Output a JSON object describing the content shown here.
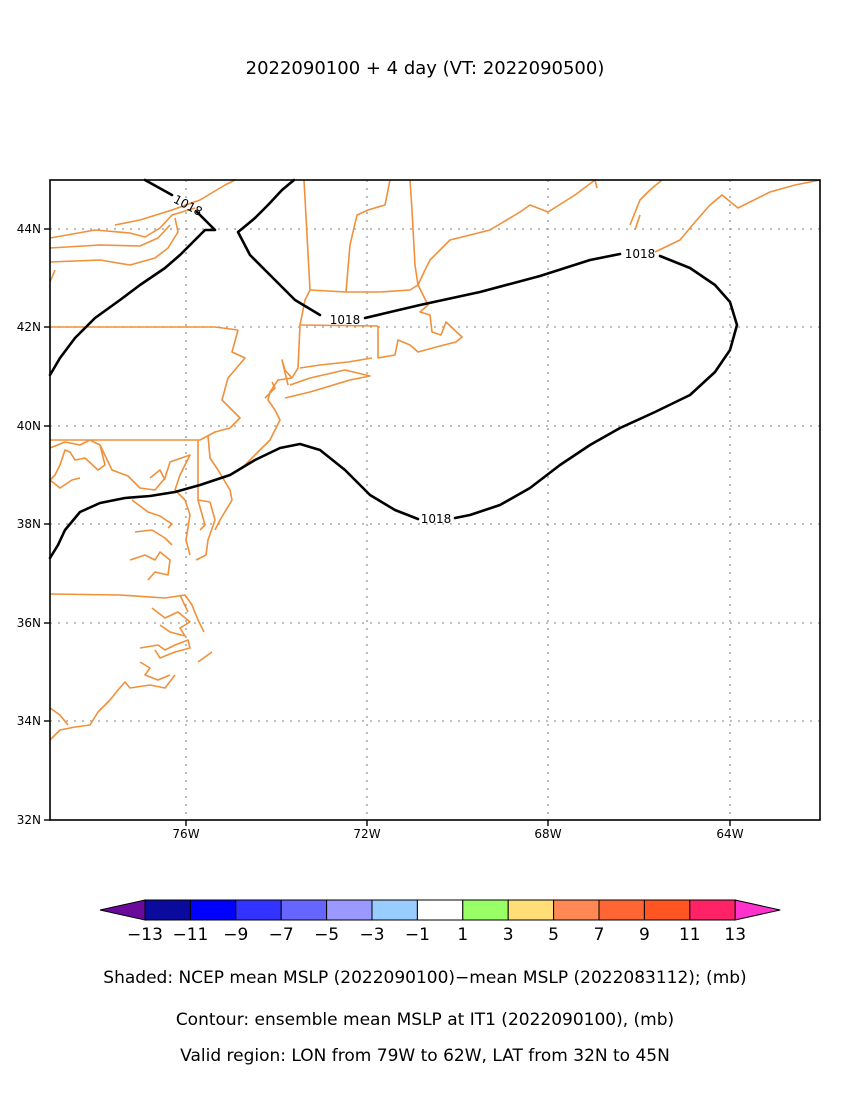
{
  "title": "2022090100 + 4 day (VT: 2022090500)",
  "map": {
    "lon_range": [
      -79,
      -62
    ],
    "lat_range": [
      32,
      45
    ],
    "lat_ticks": [
      "44N",
      "42N",
      "40N",
      "38N",
      "36N",
      "34N",
      "32N"
    ],
    "lon_ticks": [
      "76W",
      "72W",
      "68W",
      "64W"
    ],
    "grid": "dotted",
    "coastline_color": "#f0903a",
    "contour_color": "#000000",
    "contour_labels": [
      "1018",
      "1018",
      "1018",
      "1018"
    ]
  },
  "colorbar": {
    "labels": [
      "−13",
      "−11",
      "−9",
      "−7",
      "−5",
      "−3",
      "−1",
      "1",
      "3",
      "5",
      "7",
      "9",
      "11",
      "13"
    ],
    "colors": [
      "#6a0a9c",
      "#0a0a9c",
      "#0000ff",
      "#3333ff",
      "#6666ff",
      "#9999ff",
      "#99ccff",
      "#ffffff",
      "#99ff66",
      "#ffdd77",
      "#ff8855",
      "#ff6633",
      "#ff5522",
      "#ff2266",
      "#ff33cc"
    ]
  },
  "captions": {
    "shaded": "Shaded: NCEP mean MSLP (2022090100)−mean MSLP (2022083112); (mb)",
    "contour": "Contour: ensemble mean MSLP at IT1 (2022090100), (mb)",
    "region": "Valid region: LON from 79W to 62W, LAT from 32N to 45N"
  }
}
